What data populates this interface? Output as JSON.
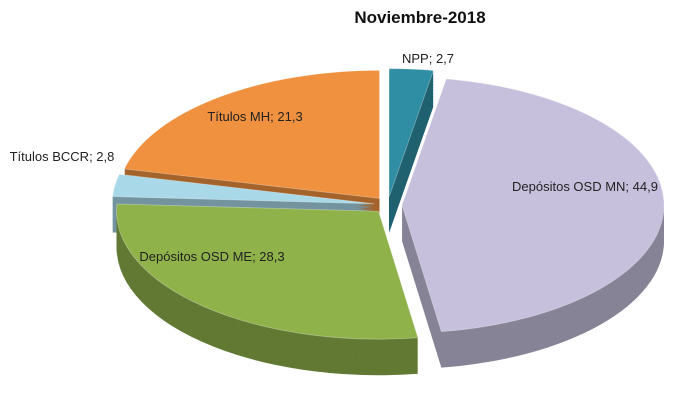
{
  "chart_data": {
    "type": "pie",
    "title": "Noviembre-2018",
    "values": [
      2.7,
      44.9,
      28.3,
      2.8,
      21.3
    ],
    "value_labels": [
      "NPP; 2,7",
      "Depósitos OSD MN; 44,9",
      "Depósitos OSD ME; 28,3",
      "Títulos BCCR; 2,8",
      "Títulos MH; 21,3"
    ],
    "colors": [
      "#2f8ea3",
      "#c7c0dd",
      "#8fb24b",
      "#a9d9e9",
      "#f0913f"
    ],
    "three_d": true,
    "exploded": true
  }
}
